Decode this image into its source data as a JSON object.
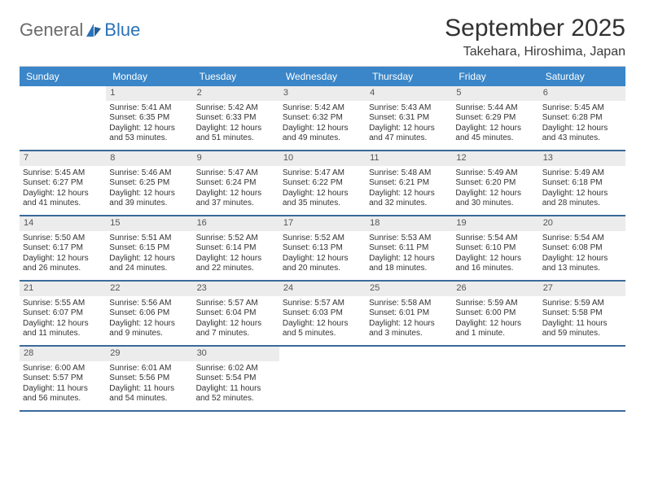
{
  "logo": {
    "general": "General",
    "blue": "Blue"
  },
  "title": "September 2025",
  "subtitle": "Takehara, Hiroshima, Japan",
  "colors": {
    "header_bg": "#3a86c8",
    "header_text": "#ffffff",
    "daynum_bg": "#ececec",
    "week_divider": "#3a6a9a",
    "logo_blue": "#2a73b8",
    "logo_gray": "#6b6b6b"
  },
  "dayLabels": [
    "Sunday",
    "Monday",
    "Tuesday",
    "Wednesday",
    "Thursday",
    "Friday",
    "Saturday"
  ],
  "weeks": [
    [
      null,
      {
        "n": "1",
        "sunrise": "Sunrise: 5:41 AM",
        "sunset": "Sunset: 6:35 PM",
        "daylight": "Daylight: 12 hours and 53 minutes."
      },
      {
        "n": "2",
        "sunrise": "Sunrise: 5:42 AM",
        "sunset": "Sunset: 6:33 PM",
        "daylight": "Daylight: 12 hours and 51 minutes."
      },
      {
        "n": "3",
        "sunrise": "Sunrise: 5:42 AM",
        "sunset": "Sunset: 6:32 PM",
        "daylight": "Daylight: 12 hours and 49 minutes."
      },
      {
        "n": "4",
        "sunrise": "Sunrise: 5:43 AM",
        "sunset": "Sunset: 6:31 PM",
        "daylight": "Daylight: 12 hours and 47 minutes."
      },
      {
        "n": "5",
        "sunrise": "Sunrise: 5:44 AM",
        "sunset": "Sunset: 6:29 PM",
        "daylight": "Daylight: 12 hours and 45 minutes."
      },
      {
        "n": "6",
        "sunrise": "Sunrise: 5:45 AM",
        "sunset": "Sunset: 6:28 PM",
        "daylight": "Daylight: 12 hours and 43 minutes."
      }
    ],
    [
      {
        "n": "7",
        "sunrise": "Sunrise: 5:45 AM",
        "sunset": "Sunset: 6:27 PM",
        "daylight": "Daylight: 12 hours and 41 minutes."
      },
      {
        "n": "8",
        "sunrise": "Sunrise: 5:46 AM",
        "sunset": "Sunset: 6:25 PM",
        "daylight": "Daylight: 12 hours and 39 minutes."
      },
      {
        "n": "9",
        "sunrise": "Sunrise: 5:47 AM",
        "sunset": "Sunset: 6:24 PM",
        "daylight": "Daylight: 12 hours and 37 minutes."
      },
      {
        "n": "10",
        "sunrise": "Sunrise: 5:47 AM",
        "sunset": "Sunset: 6:22 PM",
        "daylight": "Daylight: 12 hours and 35 minutes."
      },
      {
        "n": "11",
        "sunrise": "Sunrise: 5:48 AM",
        "sunset": "Sunset: 6:21 PM",
        "daylight": "Daylight: 12 hours and 32 minutes."
      },
      {
        "n": "12",
        "sunrise": "Sunrise: 5:49 AM",
        "sunset": "Sunset: 6:20 PM",
        "daylight": "Daylight: 12 hours and 30 minutes."
      },
      {
        "n": "13",
        "sunrise": "Sunrise: 5:49 AM",
        "sunset": "Sunset: 6:18 PM",
        "daylight": "Daylight: 12 hours and 28 minutes."
      }
    ],
    [
      {
        "n": "14",
        "sunrise": "Sunrise: 5:50 AM",
        "sunset": "Sunset: 6:17 PM",
        "daylight": "Daylight: 12 hours and 26 minutes."
      },
      {
        "n": "15",
        "sunrise": "Sunrise: 5:51 AM",
        "sunset": "Sunset: 6:15 PM",
        "daylight": "Daylight: 12 hours and 24 minutes."
      },
      {
        "n": "16",
        "sunrise": "Sunrise: 5:52 AM",
        "sunset": "Sunset: 6:14 PM",
        "daylight": "Daylight: 12 hours and 22 minutes."
      },
      {
        "n": "17",
        "sunrise": "Sunrise: 5:52 AM",
        "sunset": "Sunset: 6:13 PM",
        "daylight": "Daylight: 12 hours and 20 minutes."
      },
      {
        "n": "18",
        "sunrise": "Sunrise: 5:53 AM",
        "sunset": "Sunset: 6:11 PM",
        "daylight": "Daylight: 12 hours and 18 minutes."
      },
      {
        "n": "19",
        "sunrise": "Sunrise: 5:54 AM",
        "sunset": "Sunset: 6:10 PM",
        "daylight": "Daylight: 12 hours and 16 minutes."
      },
      {
        "n": "20",
        "sunrise": "Sunrise: 5:54 AM",
        "sunset": "Sunset: 6:08 PM",
        "daylight": "Daylight: 12 hours and 13 minutes."
      }
    ],
    [
      {
        "n": "21",
        "sunrise": "Sunrise: 5:55 AM",
        "sunset": "Sunset: 6:07 PM",
        "daylight": "Daylight: 12 hours and 11 minutes."
      },
      {
        "n": "22",
        "sunrise": "Sunrise: 5:56 AM",
        "sunset": "Sunset: 6:06 PM",
        "daylight": "Daylight: 12 hours and 9 minutes."
      },
      {
        "n": "23",
        "sunrise": "Sunrise: 5:57 AM",
        "sunset": "Sunset: 6:04 PM",
        "daylight": "Daylight: 12 hours and 7 minutes."
      },
      {
        "n": "24",
        "sunrise": "Sunrise: 5:57 AM",
        "sunset": "Sunset: 6:03 PM",
        "daylight": "Daylight: 12 hours and 5 minutes."
      },
      {
        "n": "25",
        "sunrise": "Sunrise: 5:58 AM",
        "sunset": "Sunset: 6:01 PM",
        "daylight": "Daylight: 12 hours and 3 minutes."
      },
      {
        "n": "26",
        "sunrise": "Sunrise: 5:59 AM",
        "sunset": "Sunset: 6:00 PM",
        "daylight": "Daylight: 12 hours and 1 minute."
      },
      {
        "n": "27",
        "sunrise": "Sunrise: 5:59 AM",
        "sunset": "Sunset: 5:58 PM",
        "daylight": "Daylight: 11 hours and 59 minutes."
      }
    ],
    [
      {
        "n": "28",
        "sunrise": "Sunrise: 6:00 AM",
        "sunset": "Sunset: 5:57 PM",
        "daylight": "Daylight: 11 hours and 56 minutes."
      },
      {
        "n": "29",
        "sunrise": "Sunrise: 6:01 AM",
        "sunset": "Sunset: 5:56 PM",
        "daylight": "Daylight: 11 hours and 54 minutes."
      },
      {
        "n": "30",
        "sunrise": "Sunrise: 6:02 AM",
        "sunset": "Sunset: 5:54 PM",
        "daylight": "Daylight: 11 hours and 52 minutes."
      },
      null,
      null,
      null,
      null
    ]
  ]
}
